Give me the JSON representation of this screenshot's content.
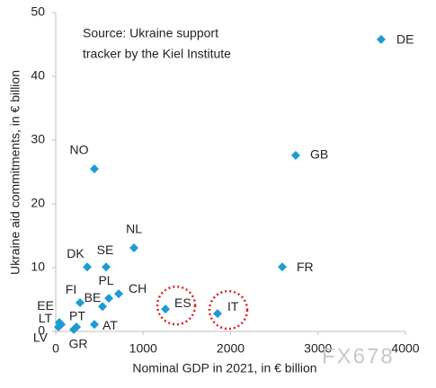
{
  "chart_data": {
    "type": "scatter",
    "x_label": "Nominal GDP in 2021, in € billion",
    "y_label": "Ukraine aid commitments, in € billion",
    "annotation": [
      "Source: Ukraine support",
      "tracker by the Kiel Institute"
    ],
    "watermark": "FX678",
    "color": "#1e9ad6",
    "labels": [
      "DE",
      "GB",
      "NO",
      "NL",
      "DK",
      "SE",
      "FR",
      "FI",
      "PL",
      "CH",
      "BE",
      "ES",
      "IT",
      "AT",
      "EE",
      "LT",
      "LV",
      "PT",
      "GR"
    ],
    "x": [
      3722,
      2745,
      442,
      895,
      360,
      576,
      2591,
      278,
      607,
      720,
      535,
      1255,
      1851,
      442,
      41,
      62,
      31,
      237,
      206
    ],
    "values": [
      45.8,
      27.6,
      25.5,
      13.1,
      10.1,
      10.1,
      10.1,
      4.5,
      5.2,
      5.9,
      3.9,
      3.5,
      2.8,
      1.1,
      1.4,
      1.1,
      0.7,
      0.7,
      0.3
    ],
    "xlim": [
      0,
      4000
    ],
    "xticks": [
      0,
      1000,
      2000,
      3000,
      4000
    ],
    "ylim": [
      0,
      50
    ],
    "yticks": [
      0,
      10,
      20,
      30,
      40,
      50
    ]
  }
}
